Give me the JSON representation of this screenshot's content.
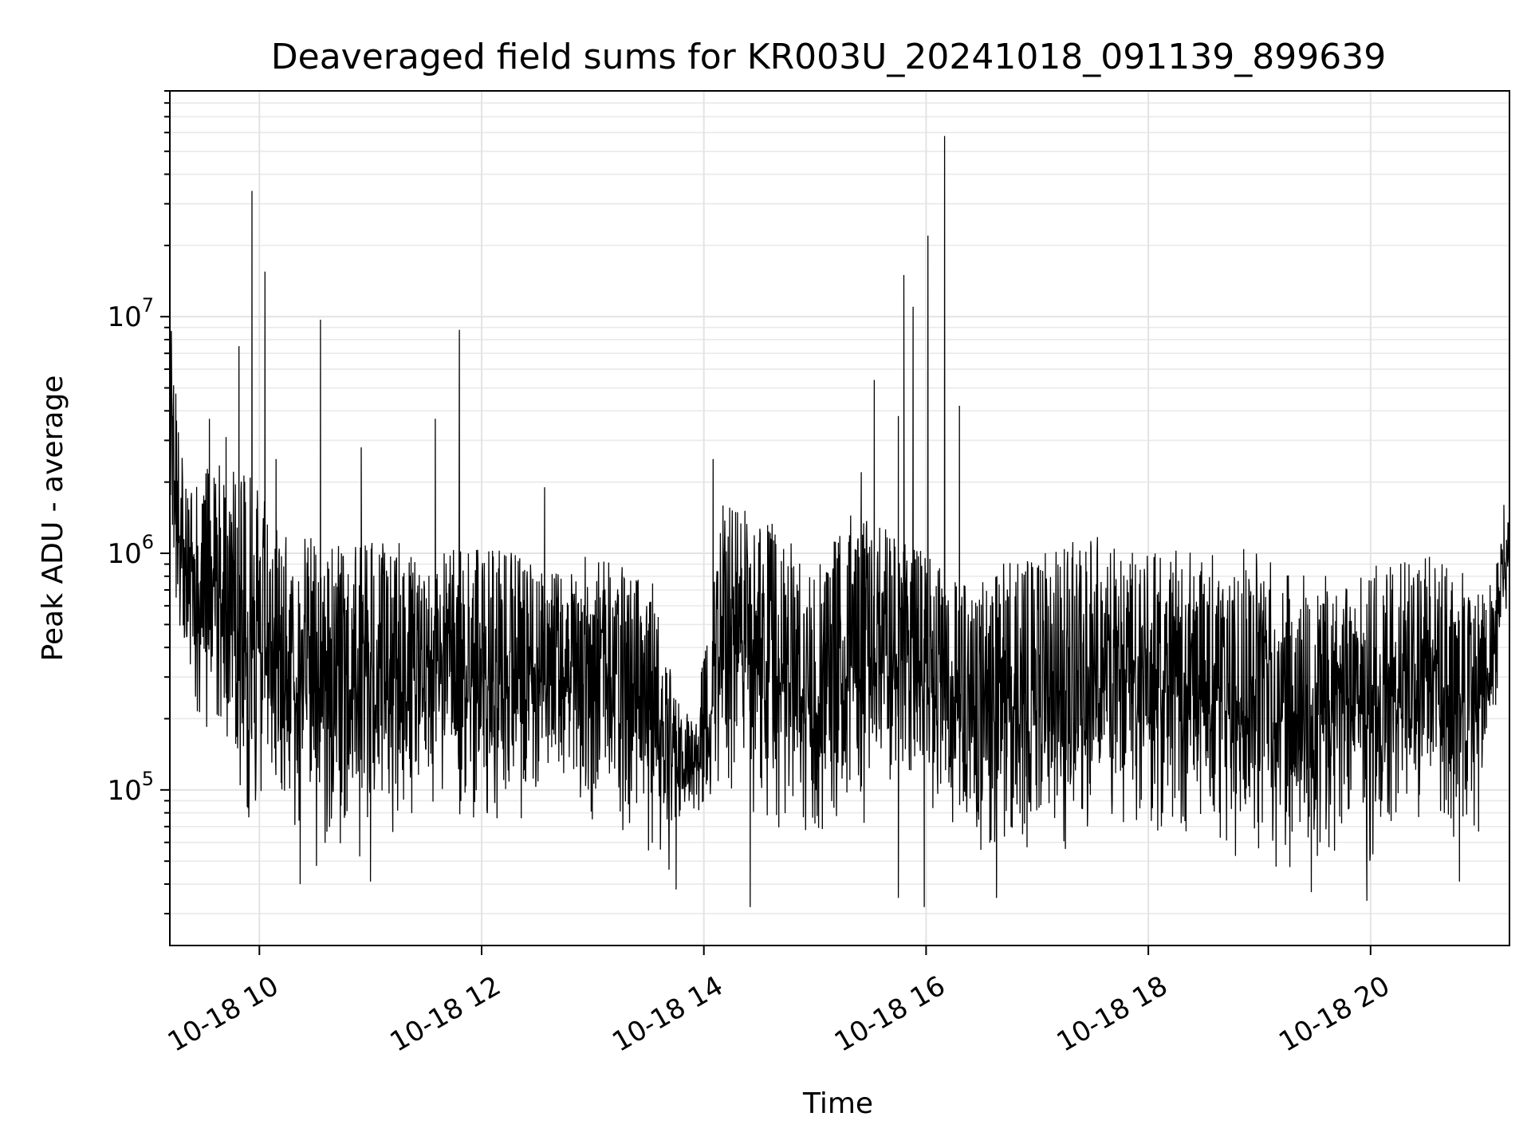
{
  "chart_data": {
    "type": "line",
    "title": "Deaveraged field sums for KR003U_20241018_091139_899639",
    "xlabel": "Time",
    "ylabel": "Peak ADU - average",
    "yscale": "log",
    "grid": true,
    "xlim": [
      "2024-10-18T09:11:39",
      "2024-10-18T21:15:00"
    ],
    "ylim": [
      22000,
      90000000
    ],
    "x_ticks": [
      {
        "value": "2024-10-18T10:00:00",
        "label": "10-18 10"
      },
      {
        "value": "2024-10-18T12:00:00",
        "label": "10-18 12"
      },
      {
        "value": "2024-10-18T14:00:00",
        "label": "10-18 14"
      },
      {
        "value": "2024-10-18T16:00:00",
        "label": "10-18 16"
      },
      {
        "value": "2024-10-18T18:00:00",
        "label": "10-18 18"
      },
      {
        "value": "2024-10-18T20:00:00",
        "label": "10-18 20"
      }
    ],
    "y_ticks": [
      {
        "value": 100000,
        "base": "10",
        "exp": "5"
      },
      {
        "value": 1000000,
        "base": "10",
        "exp": "6"
      },
      {
        "value": 10000000,
        "base": "10",
        "exp": "7"
      }
    ],
    "series": [
      {
        "color": "#000000",
        "envelope": [
          {
            "x": "2024-10-18T09:11:39",
            "low": 450000,
            "high": 14000000
          },
          {
            "x": "2024-10-18T09:20:00",
            "low": 200000,
            "high": 2000000
          },
          {
            "x": "2024-10-18T09:40:00",
            "low": 120000,
            "high": 2500000
          },
          {
            "x": "2024-10-18T09:55:00",
            "low": 60000,
            "high": 2200000
          },
          {
            "x": "2024-10-18T10:10:00",
            "low": 70000,
            "high": 1300000
          },
          {
            "x": "2024-10-18T10:30:00",
            "low": 45000,
            "high": 1200000
          },
          {
            "x": "2024-10-18T11:00:00",
            "low": 50000,
            "high": 1150000
          },
          {
            "x": "2024-10-18T11:30:00",
            "low": 80000,
            "high": 1100000
          },
          {
            "x": "2024-10-18T12:00:00",
            "low": 70000,
            "high": 1050000
          },
          {
            "x": "2024-10-18T12:30:00",
            "low": 75000,
            "high": 1000000
          },
          {
            "x": "2024-10-18T12:45:00",
            "low": 110000,
            "high": 800000
          },
          {
            "x": "2024-10-18T13:00:00",
            "low": 55000,
            "high": 1050000
          },
          {
            "x": "2024-10-18T13:30:00",
            "low": 50000,
            "high": 1000000
          },
          {
            "x": "2024-10-18T13:40:00",
            "low": 40000,
            "high": 350000
          },
          {
            "x": "2024-10-18T13:55:00",
            "low": 75000,
            "high": 200000
          },
          {
            "x": "2024-10-18T14:10:00",
            "low": 90000,
            "high": 1600000
          },
          {
            "x": "2024-10-18T14:40:00",
            "low": 60000,
            "high": 1400000
          },
          {
            "x": "2024-10-18T15:00:00",
            "low": 50000,
            "high": 900000
          },
          {
            "x": "2024-10-18T15:20:00",
            "low": 55000,
            "high": 1500000
          },
          {
            "x": "2024-10-18T15:45:00",
            "low": 90000,
            "high": 1200000
          },
          {
            "x": "2024-10-18T16:00:00",
            "low": 80000,
            "high": 1100000
          },
          {
            "x": "2024-10-18T16:20:00",
            "low": 55000,
            "high": 800000
          },
          {
            "x": "2024-10-18T16:40:00",
            "low": 40000,
            "high": 900000
          },
          {
            "x": "2024-10-18T17:00:00",
            "low": 45000,
            "high": 1000000
          },
          {
            "x": "2024-10-18T17:30:00",
            "low": 60000,
            "high": 1200000
          },
          {
            "x": "2024-10-18T18:00:00",
            "low": 55000,
            "high": 1000000
          },
          {
            "x": "2024-10-18T18:30:00",
            "low": 55000,
            "high": 1100000
          },
          {
            "x": "2024-10-18T19:00:00",
            "low": 45000,
            "high": 1050000
          },
          {
            "x": "2024-10-18T19:30:00",
            "low": 40000,
            "high": 800000
          },
          {
            "x": "2024-10-18T20:00:00",
            "low": 45000,
            "high": 900000
          },
          {
            "x": "2024-10-18T20:30:00",
            "low": 65000,
            "high": 1100000
          },
          {
            "x": "2024-10-18T20:45:00",
            "low": 60000,
            "high": 900000
          },
          {
            "x": "2024-10-18T21:00:00",
            "low": 60000,
            "high": 700000
          },
          {
            "x": "2024-10-18T21:15:00",
            "low": 700000,
            "high": 1500000
          }
        ],
        "spikes": [
          {
            "x": "2024-10-18T09:11:45",
            "y": 14000000
          },
          {
            "x": "2024-10-18T09:33:00",
            "y": 3700000
          },
          {
            "x": "2024-10-18T09:42:00",
            "y": 3100000
          },
          {
            "x": "2024-10-18T09:49:00",
            "y": 7500000
          },
          {
            "x": "2024-10-18T09:56:00",
            "y": 34000000
          },
          {
            "x": "2024-10-18T10:03:00",
            "y": 15500000
          },
          {
            "x": "2024-10-18T10:09:00",
            "y": 2500000
          },
          {
            "x": "2024-10-18T10:33:00",
            "y": 9700000
          },
          {
            "x": "2024-10-18T10:55:00",
            "y": 2800000
          },
          {
            "x": "2024-10-18T11:35:00",
            "y": 3700000
          },
          {
            "x": "2024-10-18T11:48:00",
            "y": 8800000
          },
          {
            "x": "2024-10-18T12:34:00",
            "y": 1900000
          },
          {
            "x": "2024-10-18T14:05:00",
            "y": 2500000
          },
          {
            "x": "2024-10-18T15:25:00",
            "y": 2200000
          },
          {
            "x": "2024-10-18T15:32:00",
            "y": 5400000
          },
          {
            "x": "2024-10-18T15:45:00",
            "y": 3800000
          },
          {
            "x": "2024-10-18T15:48:00",
            "y": 15000000
          },
          {
            "x": "2024-10-18T15:53:00",
            "y": 11000000
          },
          {
            "x": "2024-10-18T16:01:00",
            "y": 22000000
          },
          {
            "x": "2024-10-18T16:10:00",
            "y": 58000000
          },
          {
            "x": "2024-10-18T16:18:00",
            "y": 4200000
          },
          {
            "x": "2024-10-18T21:12:00",
            "y": 1600000
          }
        ],
        "dips": [
          {
            "x": "2024-10-18T10:22:00",
            "y": 40000
          },
          {
            "x": "2024-10-18T11:00:00",
            "y": 41000
          },
          {
            "x": "2024-10-18T13:45:00",
            "y": 38000
          },
          {
            "x": "2024-10-18T14:25:00",
            "y": 32000
          },
          {
            "x": "2024-10-18T15:45:00",
            "y": 35000
          },
          {
            "x": "2024-10-18T15:59:00",
            "y": 32000
          },
          {
            "x": "2024-10-18T16:38:00",
            "y": 35000
          },
          {
            "x": "2024-10-18T19:28:00",
            "y": 37000
          },
          {
            "x": "2024-10-18T19:58:00",
            "y": 34000
          },
          {
            "x": "2024-10-18T20:48:00",
            "y": 41000
          }
        ]
      }
    ]
  }
}
